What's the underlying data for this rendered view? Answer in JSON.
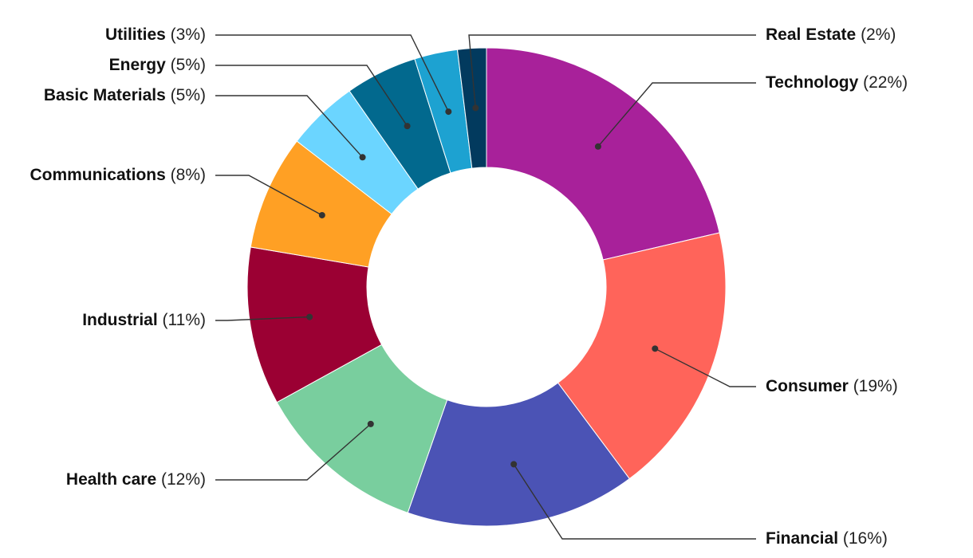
{
  "chart_data": {
    "type": "pie",
    "donut": true,
    "title": "",
    "legend": "none",
    "slices": [
      {
        "name": "Technology",
        "value": 22,
        "label_pct": "(22%)",
        "color": "#A8219A"
      },
      {
        "name": "Consumer",
        "value": 19,
        "label_pct": "(19%)",
        "color": "#FF645A"
      },
      {
        "name": "Financial",
        "value": 16,
        "label_pct": "(16%)",
        "color": "#4B53B5"
      },
      {
        "name": "Health care",
        "value": 12,
        "label_pct": "(12%)",
        "color": "#79CE9E"
      },
      {
        "name": "Industrial",
        "value": 11,
        "label_pct": "(11%)",
        "color": "#9B0033"
      },
      {
        "name": "Communications",
        "value": 8,
        "label_pct": "(8%)",
        "color": "#FFA024"
      },
      {
        "name": "Basic Materials",
        "value": 5,
        "label_pct": "(5%)",
        "color": "#6BD5FF"
      },
      {
        "name": "Energy",
        "value": 5,
        "label_pct": "(5%)",
        "color": "#02698E"
      },
      {
        "name": "Utilities",
        "value": 3,
        "label_pct": "(3%)",
        "color": "#1DA2D1"
      },
      {
        "name": "Real Estate",
        "value": 2,
        "label_pct": "(2%)",
        "color": "#023A5E"
      }
    ]
  }
}
